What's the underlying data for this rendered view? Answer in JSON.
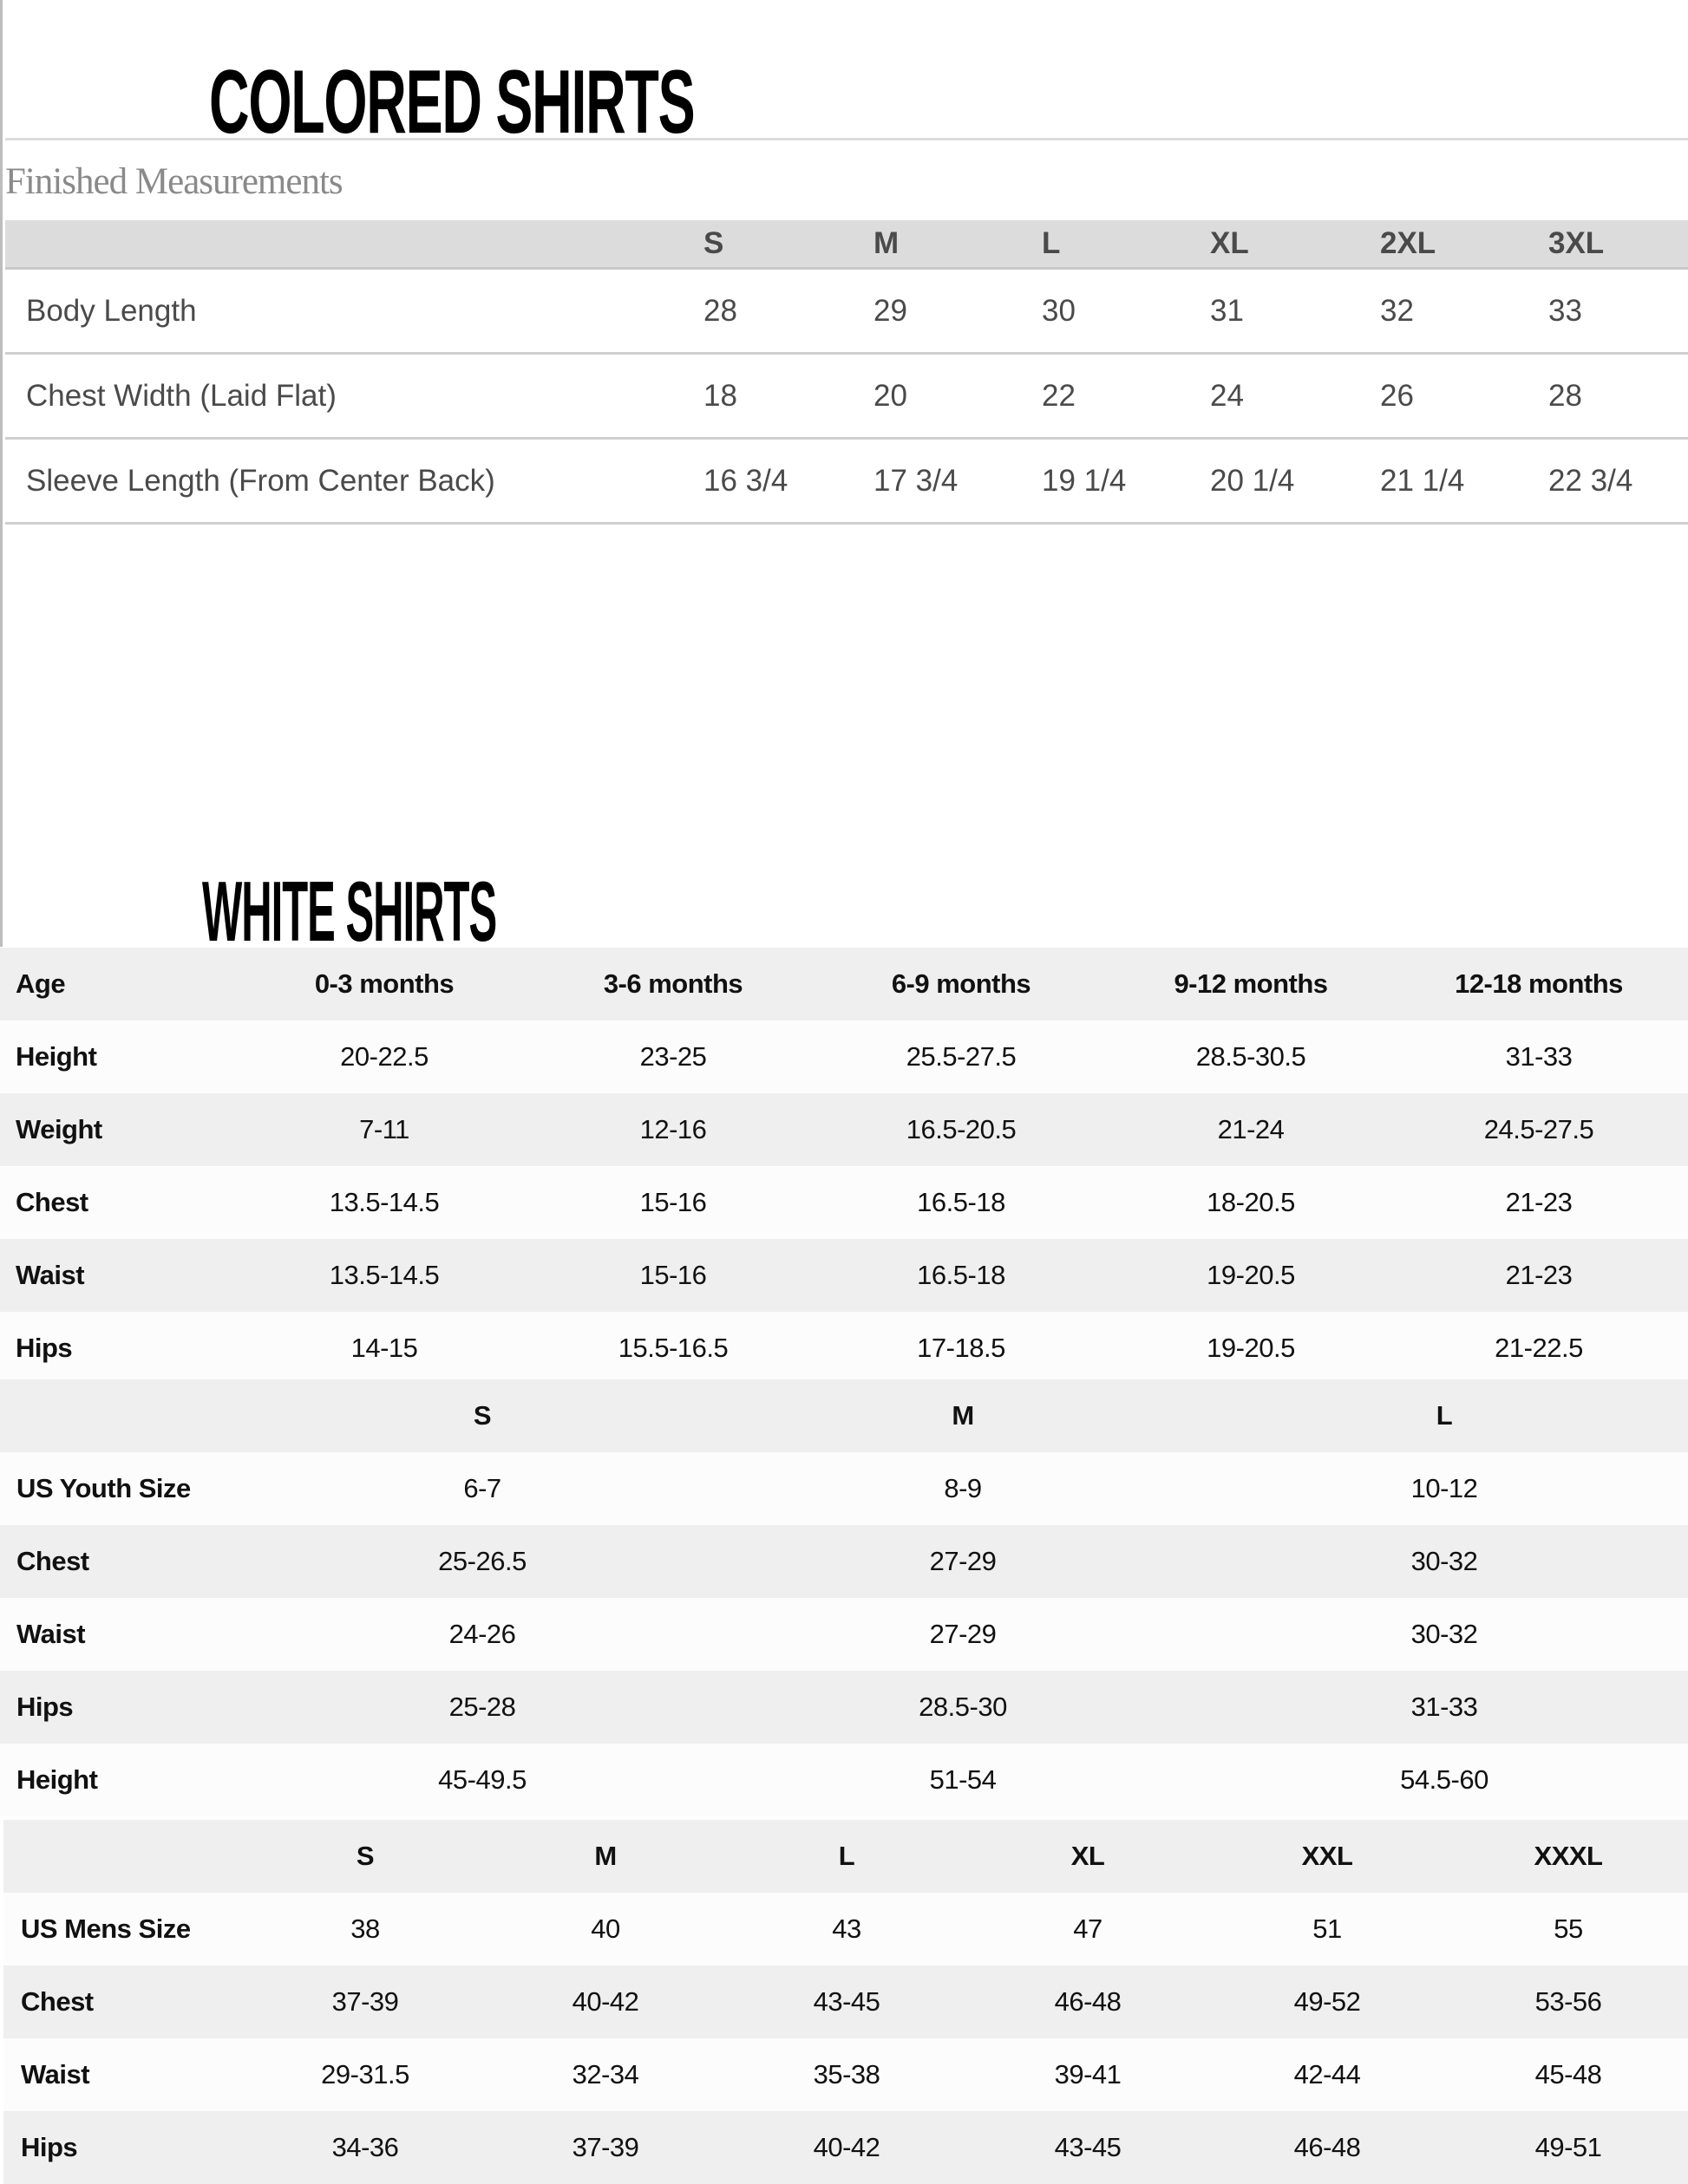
{
  "colored": {
    "title": "COLORED SHIRTS",
    "subtitle": "Finished Measurements",
    "headers": [
      "",
      "S",
      "M",
      "L",
      "XL",
      "2XL",
      "3XL"
    ],
    "rows": [
      [
        "Body Length",
        "28",
        "29",
        "30",
        "31",
        "32",
        "33"
      ],
      [
        "Chest Width (Laid Flat)",
        "18",
        "20",
        "22",
        "24",
        "26",
        "28"
      ],
      [
        "Sleeve Length (From Center Back)",
        "16 3/4",
        "17 3/4",
        "19 1/4",
        "20 1/4",
        "21 1/4",
        "22 3/4"
      ]
    ]
  },
  "white": {
    "title": "WHITE SHIRTS",
    "baby": {
      "rows": [
        [
          "Age",
          "0-3 months",
          "3-6 months",
          "6-9 months",
          "9-12 months",
          "12-18 months"
        ],
        [
          "Height",
          "20-22.5",
          "23-25",
          "25.5-27.5",
          "28.5-30.5",
          "31-33"
        ],
        [
          "Weight",
          "7-11",
          "12-16",
          "16.5-20.5",
          "21-24",
          "24.5-27.5"
        ],
        [
          "Chest",
          "13.5-14.5",
          "15-16",
          "16.5-18",
          "18-20.5",
          "21-23"
        ],
        [
          "Waist",
          "13.5-14.5",
          "15-16",
          "16.5-18",
          "19-20.5",
          "21-23"
        ],
        [
          "Hips",
          "14-15",
          "15.5-16.5",
          "17-18.5",
          "19-20.5",
          "21-22.5"
        ]
      ]
    },
    "youth": {
      "headers": [
        "",
        "S",
        "M",
        "L"
      ],
      "rows": [
        [
          "US Youth Size",
          "6-7",
          "8-9",
          "10-12"
        ],
        [
          "Chest",
          "25-26.5",
          "27-29",
          "30-32"
        ],
        [
          "Waist",
          "24-26",
          "27-29",
          "30-32"
        ],
        [
          "Hips",
          "25-28",
          "28.5-30",
          "31-33"
        ],
        [
          "Height",
          "45-49.5",
          "51-54",
          "54.5-60"
        ]
      ]
    },
    "mens": {
      "headers": [
        "",
        "S",
        "M",
        "L",
        "XL",
        "XXL",
        "XXXL"
      ],
      "rows": [
        [
          "US Mens Size",
          "38",
          "40",
          "43",
          "47",
          "51",
          "55"
        ],
        [
          "Chest",
          "37-39",
          "40-42",
          "43-45",
          "46-48",
          "49-52",
          "53-56"
        ],
        [
          "Waist",
          "29-31.5",
          "32-34",
          "35-38",
          "39-41",
          "42-44",
          "45-48"
        ],
        [
          "Hips",
          "34-36",
          "37-39",
          "40-42",
          "43-45",
          "46-48",
          "49-51"
        ]
      ]
    }
  }
}
